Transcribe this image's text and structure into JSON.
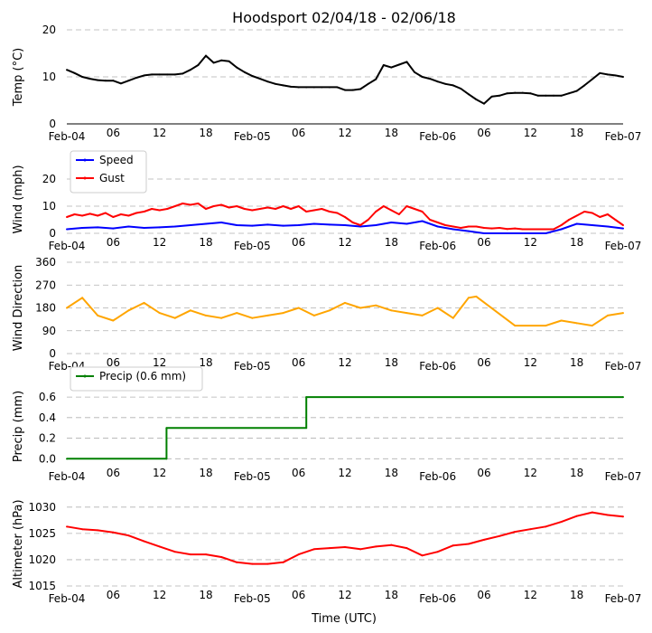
{
  "title": "Hoodsport 02/04/18 - 02/06/18",
  "xlabel": "Time (UTC)",
  "time_ticks": [
    "Feb-04",
    "06",
    "12",
    "18",
    "Feb-05",
    "06",
    "12",
    "18",
    "Feb-06",
    "06",
    "12",
    "18",
    "Feb-07"
  ],
  "colors": {
    "temp": "#000000",
    "speed": "#0000ff",
    "gust": "#ff0000",
    "dir": "#ffa500",
    "precip": "#008000",
    "alt": "#ff0000",
    "grid": "#b0b0b0"
  },
  "chart_data": [
    {
      "id": "temp",
      "type": "line",
      "ylabel": "Temp ($^\\circ$C)",
      "ylabel_text": "Temp (°C)",
      "ylim": [
        0,
        20
      ],
      "yticks": [
        "0",
        "10",
        "20"
      ],
      "series": [
        {
          "name": "Temp",
          "color": "#000000",
          "points": [
            [
              0,
              11.5
            ],
            [
              1,
              10.8
            ],
            [
              2,
              10
            ],
            [
              3,
              9.6
            ],
            [
              4,
              9.3
            ],
            [
              5,
              9.2
            ],
            [
              6,
              9.2
            ],
            [
              7,
              8.6
            ],
            [
              8,
              9.2
            ],
            [
              9,
              9.8
            ],
            [
              10,
              10.3
            ],
            [
              11,
              10.5
            ],
            [
              12,
              10.5
            ],
            [
              13,
              10.5
            ],
            [
              14,
              10.5
            ],
            [
              15,
              10.7
            ],
            [
              16,
              11.5
            ],
            [
              17,
              12.5
            ],
            [
              18,
              14.5
            ],
            [
              19,
              13
            ],
            [
              20,
              13.5
            ],
            [
              21,
              13.3
            ],
            [
              22,
              12
            ],
            [
              23,
              11
            ],
            [
              24,
              10.2
            ],
            [
              25,
              9.6
            ],
            [
              26,
              9
            ],
            [
              27,
              8.5
            ],
            [
              28,
              8.2
            ],
            [
              29,
              7.9
            ],
            [
              30,
              7.8
            ],
            [
              31,
              7.8
            ],
            [
              32,
              7.8
            ],
            [
              33,
              7.8
            ],
            [
              34,
              7.8
            ],
            [
              35,
              7.8
            ],
            [
              36,
              7.2
            ],
            [
              37,
              7.2
            ],
            [
              38,
              7.4
            ],
            [
              39,
              8.5
            ],
            [
              40,
              9.5
            ],
            [
              41,
              12.5
            ],
            [
              42,
              12
            ],
            [
              43,
              12.6
            ],
            [
              44,
              13.2
            ],
            [
              45,
              11
            ],
            [
              46,
              10
            ],
            [
              47,
              9.6
            ],
            [
              48,
              9
            ],
            [
              49,
              8.5
            ],
            [
              50,
              8.2
            ],
            [
              51,
              7.5
            ],
            [
              52,
              6.3
            ],
            [
              53,
              5.2
            ],
            [
              54,
              4.3
            ],
            [
              55,
              5.8
            ],
            [
              56,
              6
            ],
            [
              57,
              6.5
            ],
            [
              58,
              6.6
            ],
            [
              59,
              6.6
            ],
            [
              60,
              6.5
            ],
            [
              61,
              6
            ],
            [
              62,
              6
            ],
            [
              63,
              6
            ],
            [
              64,
              6
            ],
            [
              65,
              6.5
            ],
            [
              66,
              7
            ],
            [
              67,
              8.2
            ],
            [
              68,
              9.5
            ],
            [
              69,
              10.8
            ],
            [
              70,
              10.5
            ],
            [
              71,
              10.3
            ],
            [
              72,
              10
            ]
          ]
        }
      ]
    },
    {
      "id": "wind",
      "type": "line",
      "ylabel": "Wind (mph)",
      "ylim": [
        0,
        25
      ],
      "yticks": [
        "0",
        "10",
        "20"
      ],
      "legend": {
        "placement": "top-left",
        "entries": [
          "Speed",
          "Gust"
        ]
      },
      "series": [
        {
          "name": "Speed",
          "color": "#0000ff",
          "points": [
            [
              0,
              1.5
            ],
            [
              2,
              2
            ],
            [
              4,
              2.2
            ],
            [
              6,
              1.8
            ],
            [
              8,
              2.5
            ],
            [
              10,
              2
            ],
            [
              12,
              2.2
            ],
            [
              14,
              2.5
            ],
            [
              16,
              3
            ],
            [
              18,
              3.5
            ],
            [
              20,
              4
            ],
            [
              22,
              3
            ],
            [
              24,
              2.8
            ],
            [
              26,
              3.2
            ],
            [
              28,
              2.8
            ],
            [
              30,
              3
            ],
            [
              32,
              3.5
            ],
            [
              34,
              3.2
            ],
            [
              36,
              3
            ],
            [
              38,
              2.5
            ],
            [
              40,
              3
            ],
            [
              42,
              4
            ],
            [
              44,
              3.5
            ],
            [
              46,
              4.5
            ],
            [
              48,
              2.5
            ],
            [
              50,
              1.5
            ],
            [
              52,
              0.8
            ],
            [
              54,
              0
            ],
            [
              56,
              0
            ],
            [
              58,
              0
            ],
            [
              60,
              0
            ],
            [
              62,
              0
            ],
            [
              64,
              1.5
            ],
            [
              66,
              3.5
            ],
            [
              68,
              3
            ],
            [
              70,
              2.5
            ],
            [
              72,
              1.8
            ]
          ]
        },
        {
          "name": "Gust",
          "color": "#ff0000",
          "points": [
            [
              0,
              6
            ],
            [
              1,
              7
            ],
            [
              2,
              6.5
            ],
            [
              3,
              7.2
            ],
            [
              4,
              6.5
            ],
            [
              5,
              7.5
            ],
            [
              6,
              6
            ],
            [
              7,
              7
            ],
            [
              8,
              6.5
            ],
            [
              9,
              7.5
            ],
            [
              10,
              8
            ],
            [
              11,
              9
            ],
            [
              12,
              8.5
            ],
            [
              13,
              9
            ],
            [
              14,
              10
            ],
            [
              15,
              11
            ],
            [
              16,
              10.5
            ],
            [
              17,
              11
            ],
            [
              18,
              9
            ],
            [
              19,
              10
            ],
            [
              20,
              10.5
            ],
            [
              21,
              9.5
            ],
            [
              22,
              10
            ],
            [
              23,
              9
            ],
            [
              24,
              8.5
            ],
            [
              25,
              9
            ],
            [
              26,
              9.5
            ],
            [
              27,
              9
            ],
            [
              28,
              10
            ],
            [
              29,
              9
            ],
            [
              30,
              10
            ],
            [
              31,
              8
            ],
            [
              32,
              8.5
            ],
            [
              33,
              9
            ],
            [
              34,
              8
            ],
            [
              35,
              7.5
            ],
            [
              36,
              6
            ],
            [
              37,
              4
            ],
            [
              38,
              3
            ],
            [
              39,
              5
            ],
            [
              40,
              8
            ],
            [
              41,
              10
            ],
            [
              42,
              8.5
            ],
            [
              43,
              7
            ],
            [
              44,
              10
            ],
            [
              45,
              9
            ],
            [
              46,
              8
            ],
            [
              47,
              5
            ],
            [
              48,
              4
            ],
            [
              49,
              3
            ],
            [
              50,
              2.5
            ],
            [
              51,
              2
            ],
            [
              52,
              2.5
            ],
            [
              53,
              2.5
            ],
            [
              54,
              2
            ],
            [
              55,
              1.8
            ],
            [
              56,
              2
            ],
            [
              57,
              1.6
            ],
            [
              58,
              1.8
            ],
            [
              59,
              1.5
            ],
            [
              60,
              1.5
            ],
            [
              61,
              1.5
            ],
            [
              62,
              1.5
            ],
            [
              63,
              1.5
            ],
            [
              64,
              3
            ],
            [
              65,
              5
            ],
            [
              66,
              6.5
            ],
            [
              67,
              8
            ],
            [
              68,
              7.5
            ],
            [
              69,
              6
            ],
            [
              70,
              7
            ],
            [
              71,
              5
            ],
            [
              72,
              3
            ]
          ]
        }
      ]
    },
    {
      "id": "dir",
      "type": "line",
      "ylabel": "Wind Direction",
      "ylim": [
        0,
        360
      ],
      "yticks": [
        "0",
        "90",
        "180",
        "270",
        "360"
      ],
      "series": [
        {
          "name": "Direction",
          "color": "#ffa500",
          "points": [
            [
              0,
              180
            ],
            [
              2,
              220
            ],
            [
              4,
              150
            ],
            [
              6,
              130
            ],
            [
              8,
              170
            ],
            [
              10,
              200
            ],
            [
              12,
              160
            ],
            [
              14,
              140
            ],
            [
              16,
              170
            ],
            [
              18,
              150
            ],
            [
              20,
              140
            ],
            [
              22,
              160
            ],
            [
              24,
              140
            ],
            [
              26,
              150
            ],
            [
              28,
              160
            ],
            [
              30,
              180
            ],
            [
              32,
              150
            ],
            [
              34,
              170
            ],
            [
              36,
              200
            ],
            [
              38,
              180
            ],
            [
              40,
              190
            ],
            [
              42,
              170
            ],
            [
              44,
              160
            ],
            [
              46,
              150
            ],
            [
              48,
              180
            ],
            [
              50,
              140
            ],
            [
              52,
              220
            ],
            [
              53,
              225
            ],
            [
              58,
              110
            ],
            [
              62,
              110
            ],
            [
              64,
              130
            ],
            [
              66,
              120
            ],
            [
              68,
              110
            ],
            [
              70,
              150
            ],
            [
              72,
              160
            ]
          ]
        }
      ]
    },
    {
      "id": "precip",
      "type": "line",
      "ylabel": "Precip (mm)",
      "ylim": [
        -0.05,
        0.68
      ],
      "yticks": [
        "0.0",
        "0.2",
        "0.4",
        "0.6"
      ],
      "legend": {
        "placement": "top-left",
        "entries": [
          "Precip (0.6 mm)"
        ]
      },
      "series": [
        {
          "name": "Precip (0.6 mm)",
          "color": "#008000",
          "points": [
            [
              0,
              0
            ],
            [
              12.9,
              0
            ],
            [
              12.9,
              0.3
            ],
            [
              31,
              0.3
            ],
            [
              31,
              0.6
            ],
            [
              72,
              0.6
            ]
          ]
        }
      ]
    },
    {
      "id": "alt",
      "type": "line",
      "ylabel": "Altimeter (hPa)",
      "ylim": [
        1015,
        1031
      ],
      "yticks": [
        "1015",
        "1020",
        "1025",
        "1030"
      ],
      "series": [
        {
          "name": "Altimeter",
          "color": "#ff0000",
          "points": [
            [
              0,
              1026.3
            ],
            [
              2,
              1025.8
            ],
            [
              4,
              1025.6
            ],
            [
              6,
              1025.2
            ],
            [
              8,
              1024.6
            ],
            [
              10,
              1023.5
            ],
            [
              12,
              1022.5
            ],
            [
              14,
              1021.5
            ],
            [
              16,
              1021
            ],
            [
              18,
              1021
            ],
            [
              20,
              1020.5
            ],
            [
              22,
              1019.5
            ],
            [
              24,
              1019.2
            ],
            [
              26,
              1019.2
            ],
            [
              28,
              1019.5
            ],
            [
              30,
              1021
            ],
            [
              32,
              1022
            ],
            [
              34,
              1022.2
            ],
            [
              36,
              1022.4
            ],
            [
              38,
              1022
            ],
            [
              40,
              1022.5
            ],
            [
              42,
              1022.8
            ],
            [
              44,
              1022.2
            ],
            [
              46,
              1020.8
            ],
            [
              48,
              1021.5
            ],
            [
              50,
              1022.7
            ],
            [
              52,
              1023
            ],
            [
              54,
              1023.8
            ],
            [
              56,
              1024.5
            ],
            [
              58,
              1025.3
            ],
            [
              60,
              1025.8
            ],
            [
              62,
              1026.3
            ],
            [
              64,
              1027.2
            ],
            [
              66,
              1028.3
            ],
            [
              68,
              1029
            ],
            [
              70,
              1028.5
            ],
            [
              72,
              1028.2
            ]
          ]
        }
      ]
    }
  ]
}
